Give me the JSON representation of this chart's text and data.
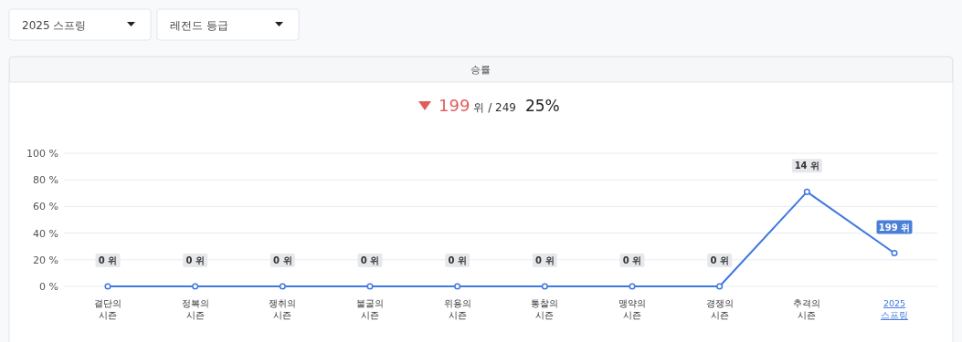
{
  "chart_data": {
    "type": "line",
    "title": "승률",
    "annotations": [
      "2025 스프링",
      "레전드 등급",
      "199",
      "위 / 249",
      "25%",
      {
        "text": "0 위",
        "x": "결단의\n시즌",
        "y": 0
      },
      {
        "text": "0 위",
        "x": "정복의\n시즌",
        "y": 0
      },
      {
        "text": "0 위",
        "x": "쟁취의\n시즌",
        "y": 0
      },
      {
        "text": "0 위",
        "x": "불굴의\n시즌",
        "y": 0
      },
      {
        "text": "0 위",
        "x": "위용의\n시즌",
        "y": 0
      },
      {
        "text": "0 위",
        "x": "통찰의\n시즌",
        "y": 0
      },
      {
        "text": "0 위",
        "x": "맹약의\n시즌",
        "y": 0
      },
      {
        "text": "0 위",
        "x": "경쟁의\n시즌",
        "y": 0
      },
      {
        "text": "14 위",
        "x": "추격의\n시즌",
        "y": 71
      },
      {
        "text": "199 위",
        "x": "2025\n스프링",
        "y": 25
      }
    ],
    "categories": [
      "결단의\n시즌",
      "정복의\n시즌",
      "쟁취의\n시즌",
      "불굴의\n시즌",
      "위용의\n시즌",
      "통찰의\n시즌",
      "맹약의\n시즌",
      "경쟁의\n시즌",
      "추격의\n시즌",
      "2025\n스프링"
    ],
    "series": [
      {
        "color": "#3f78e0",
        "values": [
          0,
          0,
          0,
          0,
          0,
          0,
          0,
          0,
          71,
          25
        ]
      }
    ],
    "ylim": [
      0,
      100
    ],
    "yticks": [
      {
        "value": 0,
        "label": "0 %"
      },
      {
        "value": 20,
        "label": "20 %"
      },
      {
        "value": 40,
        "label": "40 %"
      },
      {
        "value": 60,
        "label": "60 %"
      },
      {
        "value": 80,
        "label": "80 %"
      },
      {
        "value": 100,
        "label": "100 %"
      }
    ],
    "grid": "y",
    "marker": "circle",
    "line_style": "solid"
  }
}
